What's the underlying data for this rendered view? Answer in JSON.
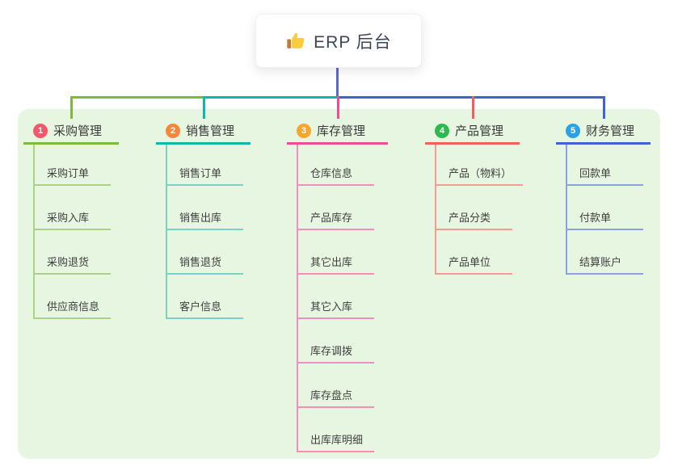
{
  "root": {
    "title": "ERP 后台",
    "icon": "thumbs-up-icon"
  },
  "colors": {
    "page_bg": "#ffffff",
    "panel_bg": "#e7f6e1",
    "root_card_bg": "#ffffff",
    "root_text": "#3b4656",
    "root_connector": "#5b68d4",
    "label_text": "#3a3a3a",
    "child_text": "#3f3f3f",
    "emoji_hand": "#fbcc3c",
    "emoji_sleeve": "#c77b30"
  },
  "branches": [
    {
      "number": "1",
      "label": "采购管理",
      "badge_color": "#f4566c",
      "line_color": "#7cba3d",
      "child_line_color": "#a9d284",
      "children": [
        "采购订单",
        "采购入库",
        "采购退货",
        "供应商信息"
      ]
    },
    {
      "number": "2",
      "label": "销售管理",
      "badge_color": "#f6863b",
      "line_color": "#0eb8a7",
      "child_line_color": "#7dd0c5",
      "children": [
        "销售订单",
        "销售出库",
        "销售退货",
        "客户信息"
      ]
    },
    {
      "number": "3",
      "label": "库存管理",
      "badge_color": "#f6a62b",
      "line_color": "#ee4d93",
      "child_line_color": "#f48cbd",
      "children": [
        "仓库信息",
        "产品库存",
        "其它出库",
        "其它入库",
        "库存调拨",
        "库存盘点",
        "出库库明细"
      ]
    },
    {
      "number": "4",
      "label": "产品管理",
      "badge_color": "#2eb950",
      "line_color": "#f55f59",
      "child_line_color": "#f79a93",
      "children": [
        "产品（物料）",
        "产品分类",
        "产品单位"
      ]
    },
    {
      "number": "5",
      "label": "财务管理",
      "badge_color": "#2aa2e4",
      "line_color": "#4263cf",
      "child_line_color": "#8aa2e0",
      "children": [
        "回款单",
        "付款单",
        "结算账户"
      ]
    }
  ]
}
